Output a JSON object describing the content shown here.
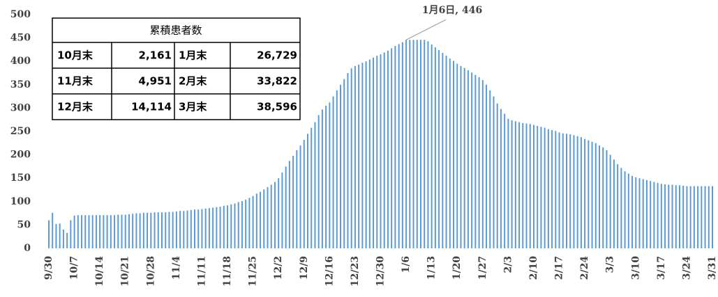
{
  "chart_data": {
    "type": "bar",
    "annotation": "1月6日, 446",
    "color": "#5b9bd5",
    "categories": [
      "9/30",
      null,
      null,
      null,
      null,
      null,
      null,
      "10/7",
      null,
      null,
      null,
      null,
      null,
      null,
      "10/14",
      null,
      null,
      null,
      null,
      null,
      null,
      "10/21",
      null,
      null,
      null,
      null,
      null,
      null,
      "10/28",
      null,
      null,
      null,
      null,
      null,
      null,
      "11/4",
      null,
      null,
      null,
      null,
      null,
      null,
      "11/11",
      null,
      null,
      null,
      null,
      null,
      null,
      "11/18",
      null,
      null,
      null,
      null,
      null,
      null,
      "11/25",
      null,
      null,
      null,
      null,
      null,
      null,
      "12/2",
      null,
      null,
      null,
      null,
      null,
      null,
      "12/9",
      null,
      null,
      null,
      null,
      null,
      null,
      "12/16",
      null,
      null,
      null,
      null,
      null,
      null,
      "12/23",
      null,
      null,
      null,
      null,
      null,
      null,
      "12/30",
      null,
      null,
      null,
      null,
      null,
      null,
      "1/6",
      null,
      null,
      null,
      null,
      null,
      null,
      "1/13",
      null,
      null,
      null,
      null,
      null,
      null,
      "1/20",
      null,
      null,
      null,
      null,
      null,
      null,
      "1/27",
      null,
      null,
      null,
      null,
      null,
      null,
      "2/3",
      null,
      null,
      null,
      null,
      null,
      null,
      "2/10",
      null,
      null,
      null,
      null,
      null,
      null,
      "2/17",
      null,
      null,
      null,
      null,
      null,
      null,
      "2/24",
      null,
      null,
      null,
      null,
      null,
      null,
      "3/3",
      null,
      null,
      null,
      null,
      null,
      null,
      "3/10",
      null,
      null,
      null,
      null,
      null,
      null,
      "3/17",
      null,
      null,
      null,
      null,
      null,
      null,
      "3/24",
      null,
      null,
      null,
      null,
      null,
      null,
      "3/31"
    ],
    "values": [
      60,
      76,
      52,
      53,
      40,
      33,
      60,
      70,
      71,
      71,
      71,
      71,
      71,
      71,
      71,
      71,
      71,
      71,
      71,
      72,
      72,
      72,
      73,
      74,
      75,
      75,
      76,
      76,
      76,
      77,
      77,
      77,
      77,
      78,
      78,
      79,
      80,
      80,
      81,
      82,
      83,
      83,
      84,
      85,
      86,
      87,
      88,
      89,
      91,
      92,
      94,
      96,
      99,
      101,
      104,
      108,
      112,
      117,
      121,
      126,
      131,
      136,
      142,
      150,
      162,
      175,
      187,
      198,
      210,
      220,
      232,
      245,
      258,
      270,
      285,
      297,
      305,
      312,
      325,
      338,
      350,
      362,
      375,
      385,
      390,
      393,
      397,
      400,
      404,
      408,
      412,
      415,
      419,
      423,
      428,
      433,
      437,
      441,
      446,
      446,
      446,
      446,
      446,
      446,
      443,
      436,
      430,
      424,
      418,
      412,
      406,
      401,
      395,
      390,
      386,
      381,
      376,
      371,
      366,
      360,
      350,
      338,
      325,
      310,
      298,
      288,
      277,
      274,
      272,
      270,
      268,
      267,
      266,
      264,
      262,
      260,
      258,
      255,
      253,
      251,
      248,
      246,
      245,
      244,
      242,
      240,
      238,
      234,
      231,
      228,
      225,
      220,
      216,
      210,
      200,
      190,
      180,
      172,
      165,
      160,
      155,
      152,
      150,
      148,
      146,
      144,
      142,
      140,
      138,
      137,
      136,
      136,
      135,
      135,
      134,
      133,
      133,
      133,
      133,
      133,
      133,
      133,
      133
    ],
    "ylim": [
      0,
      500
    ],
    "yticks": [
      0,
      50,
      100,
      150,
      200,
      250,
      300,
      350,
      400,
      450,
      500
    ],
    "grid": false
  },
  "table": {
    "title": "累積患者数",
    "rows": [
      [
        "10月末",
        "2,161",
        "1月末",
        "26,729"
      ],
      [
        "11月末",
        "4,951",
        "2月末",
        "33,822"
      ],
      [
        "12月末",
        "14,114",
        "3月末",
        "38,596"
      ]
    ]
  }
}
